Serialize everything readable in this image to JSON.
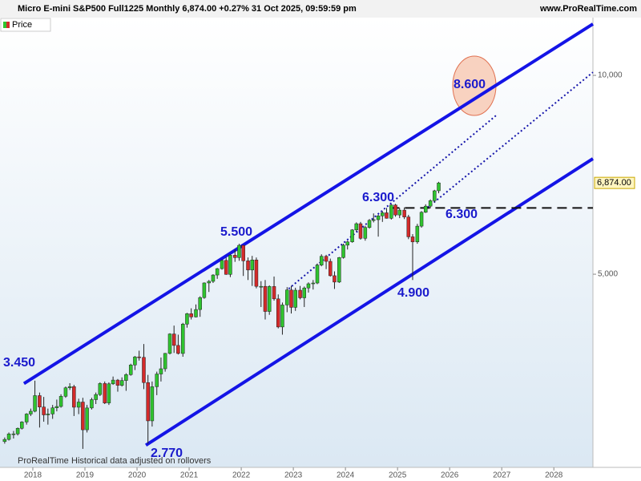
{
  "chart_data": {
    "type": "candlestick",
    "title": "Micro E-mini S&P500 Full1225 Monthly 6,874.00 +0.27% 31 Oct 2025, 09:59:59 pm",
    "source": "www.ProRealTime.com",
    "legend_label": "Price",
    "footer_brand": "ProRealTime",
    "footer_note": "Historical data adjusted on rollovers",
    "log_scale": true,
    "up_color": "#2fc42f",
    "down_color": "#d42a2a",
    "xlim": [
      2017.37,
      2028.75
    ],
    "xticks": [
      2018,
      2019,
      2020,
      2021,
      2022,
      2023,
      2024,
      2025,
      2026,
      2027,
      2028
    ],
    "ylim": [
      2550,
      12230
    ],
    "yticks": [
      {
        "value": 5000,
        "label": "5,000"
      },
      {
        "value": 10000,
        "label": "10,000"
      }
    ],
    "last_price": {
      "value": 6874,
      "label": "6,874.00"
    },
    "x": [
      2017.46,
      2017.54,
      2017.63,
      2017.71,
      2017.79,
      2017.88,
      2017.96,
      2018.04,
      2018.13,
      2018.21,
      2018.29,
      2018.38,
      2018.46,
      2018.54,
      2018.63,
      2018.71,
      2018.79,
      2018.88,
      2018.96,
      2019.04,
      2019.13,
      2019.21,
      2019.29,
      2019.38,
      2019.46,
      2019.54,
      2019.63,
      2019.71,
      2019.79,
      2019.88,
      2019.96,
      2020.04,
      2020.13,
      2020.21,
      2020.29,
      2020.38,
      2020.46,
      2020.54,
      2020.63,
      2020.71,
      2020.79,
      2020.88,
      2020.96,
      2021.04,
      2021.13,
      2021.21,
      2021.29,
      2021.38,
      2021.46,
      2021.54,
      2021.63,
      2021.71,
      2021.79,
      2021.88,
      2021.96,
      2022.04,
      2022.13,
      2022.21,
      2022.29,
      2022.38,
      2022.46,
      2022.54,
      2022.63,
      2022.71,
      2022.79,
      2022.88,
      2022.96,
      2023.04,
      2023.13,
      2023.21,
      2023.29,
      2023.38,
      2023.46,
      2023.54,
      2023.63,
      2023.71,
      2023.79,
      2023.88,
      2023.96,
      2024.04,
      2024.13,
      2024.21,
      2024.29,
      2024.38,
      2024.46,
      2024.54,
      2024.63,
      2024.71,
      2024.79,
      2024.88,
      2024.96,
      2025.04,
      2025.13,
      2025.21,
      2025.29,
      2025.38,
      2025.46,
      2025.54,
      2025.63,
      2025.71,
      2025.79
    ],
    "open": [
      2790,
      2811,
      2865,
      2866,
      2922,
      2987,
      3071,
      3101,
      3275,
      3147,
      3062,
      3072,
      3138,
      3153,
      3267,
      3365,
      3379,
      3145,
      3202,
      2907,
      3137,
      3229,
      3287,
      3416,
      3192,
      3412,
      3457,
      3394,
      3452,
      3523,
      3644,
      3748,
      3742,
      3427,
      2999,
      3378,
      3531,
      3596,
      3794,
      4060,
      3901,
      3793,
      4202,
      4357,
      4308,
      4421,
      4609,
      4850,
      4877,
      4986,
      5098,
      5247,
      4997,
      5342,
      5298,
      5529,
      5239,
      5074,
      5255,
      4793,
      4793,
      4391,
      4791,
      4588,
      4160,
      4492,
      4733,
      4454,
      4729,
      4605,
      4766,
      4836,
      4849,
      5162,
      5323,
      5229,
      4974,
      4865,
      5299,
      5533,
      5597,
      5835,
      5963,
      5666,
      5885,
      6033,
      6047,
      6128,
      6194,
      6076,
      6364,
      6147,
      6252,
      6104,
      5696,
      5597,
      5912,
      6205,
      6339,
      6460,
      6688
    ],
    "high": [
      2830,
      2880,
      2895,
      2930,
      2995,
      3080,
      3130,
      3450,
      3310,
      3260,
      3130,
      3170,
      3230,
      3290,
      3380,
      3420,
      3400,
      3240,
      3250,
      3170,
      3250,
      3310,
      3430,
      3440,
      3430,
      3500,
      3470,
      3490,
      3540,
      3660,
      3760,
      3830,
      3920,
      3520,
      3440,
      3560,
      3740,
      3800,
      4070,
      4180,
      4050,
      4220,
      4370,
      4440,
      4500,
      4630,
      4860,
      4900,
      5000,
      5110,
      5260,
      5300,
      5360,
      5450,
      5560,
      5540,
      5300,
      5330,
      5300,
      4880,
      4900,
      4810,
      4960,
      4660,
      4530,
      4780,
      4800,
      4770,
      4800,
      4790,
      4860,
      4900,
      5190,
      5360,
      5350,
      5280,
      5050,
      5310,
      5560,
      5620,
      5850,
      5990,
      6000,
      5920,
      6060,
      6180,
      6150,
      6230,
      6300,
      6380,
      6390,
      6300,
      6310,
      6150,
      5750,
      5960,
      6230,
      6380,
      6490,
      6710,
      6900
    ],
    "low": [
      2770,
      2800,
      2820,
      2850,
      2910,
      2960,
      3050,
      3090,
      2930,
      2990,
      2960,
      3020,
      3100,
      3140,
      3250,
      3340,
      3050,
      3070,
      2720,
      2880,
      3120,
      3180,
      3270,
      3180,
      3170,
      3400,
      3320,
      3380,
      3330,
      3510,
      3580,
      3700,
      3350,
      2770,
      2940,
      3280,
      3440,
      3560,
      3780,
      3800,
      3780,
      3750,
      4150,
      4270,
      4300,
      4310,
      4590,
      4700,
      4850,
      4920,
      5080,
      4990,
      4950,
      5220,
      5240,
      4970,
      4900,
      4800,
      4760,
      4460,
      4270,
      4340,
      4560,
      4140,
      4050,
      4380,
      4360,
      4400,
      4580,
      4460,
      4690,
      4740,
      4830,
      5140,
      5090,
      4960,
      4750,
      4850,
      5280,
      5450,
      5580,
      5800,
      5640,
      5620,
      5860,
      5990,
      5700,
      6000,
      6070,
      6050,
      6110,
      6080,
      6060,
      5650,
      4900,
      5560,
      5880,
      6190,
      6290,
      6420,
      6630
    ],
    "close": [
      2811,
      2865,
      2866,
      2922,
      2987,
      3071,
      3101,
      3275,
      3147,
      3062,
      3072,
      3138,
      3153,
      3267,
      3365,
      3379,
      3145,
      3202,
      2907,
      3137,
      3229,
      3287,
      3416,
      3192,
      3412,
      3457,
      3394,
      3452,
      3523,
      3644,
      3748,
      3742,
      3427,
      2999,
      3378,
      3531,
      3596,
      3794,
      4060,
      3901,
      3793,
      4202,
      4357,
      4308,
      4421,
      4609,
      4850,
      4877,
      4986,
      5098,
      5247,
      4997,
      5342,
      5298,
      5529,
      5239,
      5074,
      5255,
      4793,
      4793,
      4391,
      4791,
      4588,
      4160,
      4492,
      4733,
      4454,
      4729,
      4605,
      4766,
      4836,
      4849,
      5162,
      5323,
      5229,
      4974,
      4865,
      5299,
      5533,
      5597,
      5835,
      5963,
      5666,
      5885,
      6033,
      6047,
      6128,
      6194,
      6076,
      6364,
      6147,
      6252,
      6104,
      5696,
      5597,
      5912,
      6205,
      6339,
      6460,
      6688,
      6874
    ],
    "trendlines": [
      {
        "style": "solid",
        "color": "#1414e6",
        "x": [
          2017.83,
          2028.75
        ],
        "y": [
          3415,
          11960
        ]
      },
      {
        "style": "solid",
        "color": "#1414e6",
        "x": [
          2020.17,
          2028.75
        ],
        "y": [
          2755,
          7480
        ]
      },
      {
        "style": "dotted",
        "color": "#1414aa",
        "x": [
          2022.91,
          2026.91
        ],
        "y": [
          4752,
          8720
        ]
      },
      {
        "style": "dotted",
        "color": "#1414aa",
        "x": [
          2025.52,
          2028.75
        ],
        "y": [
          6254,
          10110
        ]
      },
      {
        "style": "dashed",
        "color": "#111111",
        "x": [
          2024.85,
          2028.75
        ],
        "y": [
          6300,
          6300
        ]
      }
    ],
    "annotations": [
      "3.450",
      "5.500",
      "6.300",
      "6.300",
      "4.900",
      "2.770",
      "8.600"
    ]
  }
}
